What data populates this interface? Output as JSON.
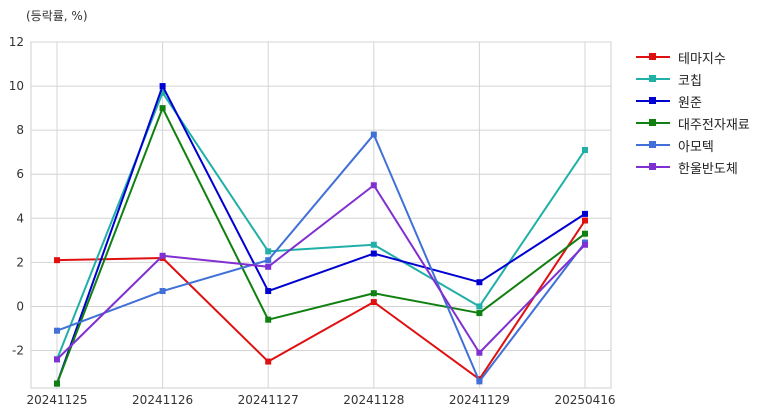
{
  "unit_label": "(등락률, %)",
  "chart_data": {
    "type": "line",
    "title": "",
    "xlabel": "",
    "ylabel": "",
    "categories": [
      "20241125",
      "20241126",
      "20241127",
      "20241128",
      "20241129",
      "20250416"
    ],
    "ylim": [
      -3.7,
      12
    ],
    "yticks": [
      -2,
      0,
      2,
      4,
      6,
      8,
      10,
      12
    ],
    "grid": true,
    "legend_position": "right",
    "series": [
      {
        "name": "테마지수",
        "color": "#e01010",
        "values": [
          2.1,
          2.2,
          -2.5,
          0.2,
          -3.3,
          3.9
        ]
      },
      {
        "name": "코칩",
        "color": "#20b0a8",
        "values": [
          -2.4,
          9.7,
          2.5,
          2.8,
          0.0,
          7.1
        ]
      },
      {
        "name": "원준",
        "color": "#0000d0",
        "values": [
          -3.5,
          10.0,
          0.7,
          2.4,
          1.1,
          4.2
        ]
      },
      {
        "name": "대주전자재료",
        "color": "#108010",
        "values": [
          -3.5,
          9.0,
          -0.6,
          0.6,
          -0.3,
          3.3
        ]
      },
      {
        "name": "아모텍",
        "color": "#4070d8",
        "values": [
          -1.1,
          0.7,
          2.1,
          7.8,
          -3.4,
          2.9
        ]
      },
      {
        "name": "한울반도체",
        "color": "#8030d0",
        "values": [
          -2.4,
          2.3,
          1.8,
          5.5,
          -2.1,
          2.8
        ]
      }
    ]
  }
}
